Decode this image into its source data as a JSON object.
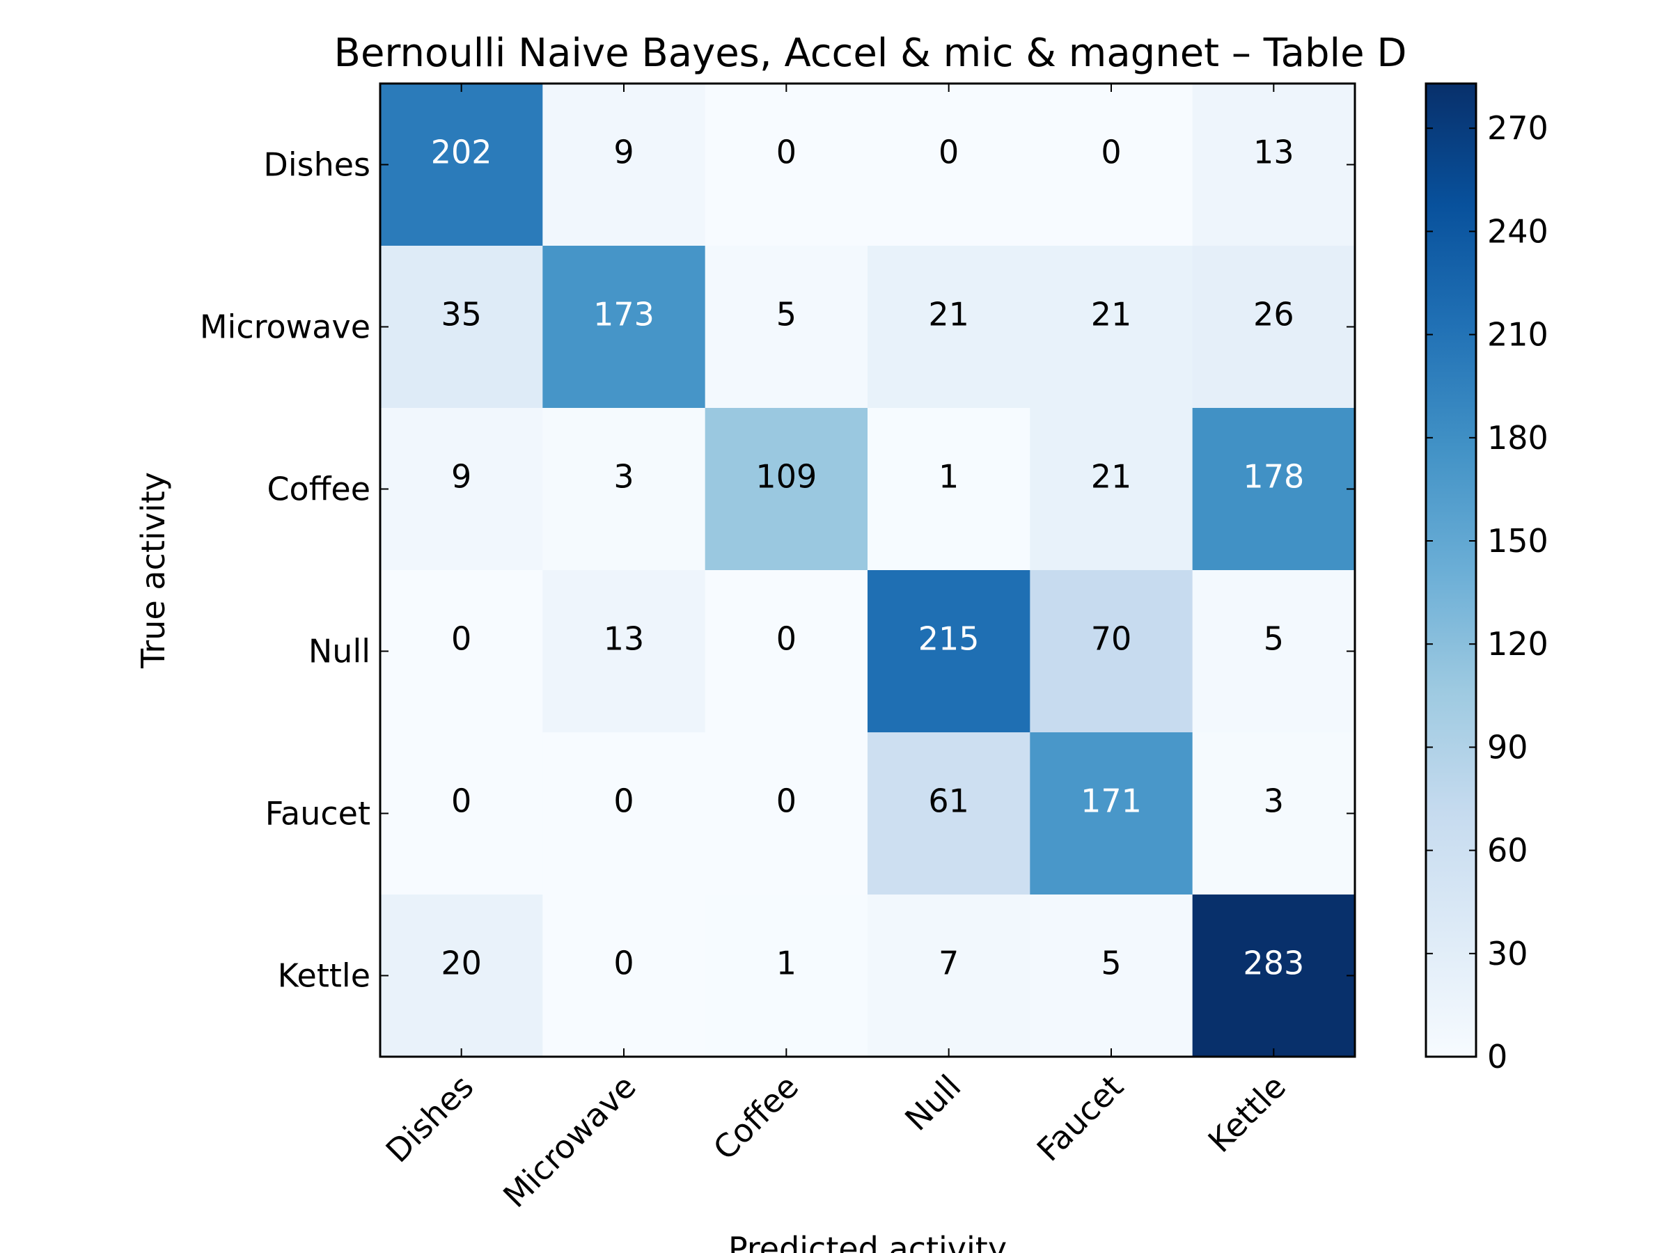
{
  "chart_data": {
    "type": "heatmap",
    "title": "Bernoulli Naive Bayes, Accel & mic & magnet – Table D",
    "xlabel": "Predicted activity",
    "ylabel": "True activity",
    "x_categories": [
      "Dishes",
      "Microwave",
      "Coffee",
      "Null",
      "Faucet",
      "Kettle"
    ],
    "y_categories": [
      "Dishes",
      "Microwave",
      "Coffee",
      "Null",
      "Faucet",
      "Kettle"
    ],
    "values": [
      [
        202,
        9,
        0,
        0,
        0,
        13
      ],
      [
        35,
        173,
        5,
        21,
        21,
        26
      ],
      [
        9,
        3,
        109,
        1,
        21,
        178
      ],
      [
        0,
        13,
        0,
        215,
        70,
        5
      ],
      [
        0,
        0,
        0,
        61,
        171,
        3
      ],
      [
        20,
        0,
        1,
        7,
        5,
        283
      ]
    ],
    "colormap": "Blues",
    "vmin": 0,
    "vmax": 283,
    "colorbar_ticks": [
      "0",
      "30",
      "60",
      "90",
      "120",
      "150",
      "180",
      "210",
      "240",
      "270"
    ]
  }
}
